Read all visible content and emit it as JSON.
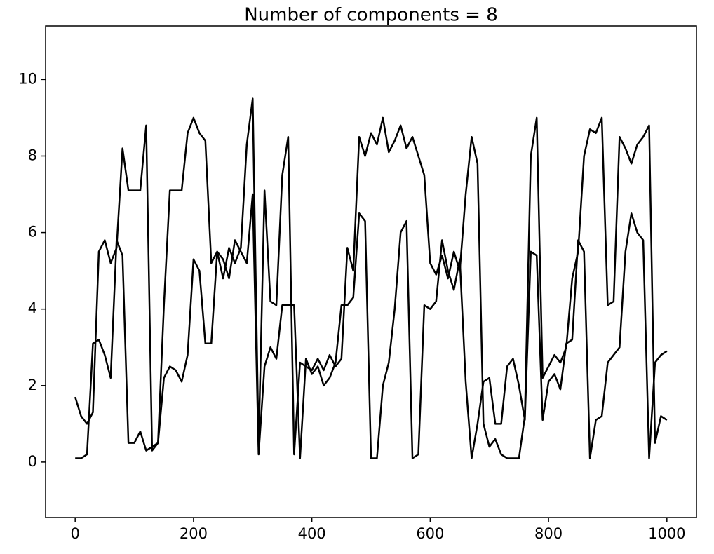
{
  "chart_data": {
    "type": "line",
    "title": "Number of components = 8",
    "x": [
      0,
      10,
      20,
      30,
      40,
      50,
      60,
      70,
      80,
      90,
      100,
      110,
      120,
      130,
      140,
      150,
      160,
      170,
      180,
      190,
      200,
      210,
      220,
      230,
      240,
      250,
      260,
      270,
      280,
      290,
      300,
      310,
      320,
      330,
      340,
      350,
      360,
      370,
      380,
      390,
      400,
      410,
      420,
      430,
      440,
      450,
      460,
      470,
      480,
      490,
      500,
      510,
      520,
      530,
      540,
      550,
      560,
      570,
      580,
      590,
      600,
      610,
      620,
      630,
      640,
      650,
      660,
      670,
      680,
      690,
      700,
      710,
      720,
      730,
      740,
      750,
      760,
      770,
      780,
      790,
      800,
      810,
      820,
      830,
      840,
      850,
      860,
      870,
      880,
      890,
      900,
      910,
      920,
      930,
      940,
      950,
      960,
      970,
      980,
      990,
      1000
    ],
    "series": [
      {
        "color": "#000000",
        "values": [
          1.7,
          1.2,
          1.0,
          1.3,
          5.5,
          5.8,
          5.2,
          5.6,
          8.2,
          7.1,
          7.1,
          7.1,
          8.8,
          0.3,
          0.5,
          4.1,
          7.1,
          7.1,
          7.1,
          8.6,
          9.0,
          8.6,
          8.4,
          5.2,
          5.5,
          4.8,
          5.6,
          5.2,
          5.6,
          8.3,
          9.5,
          0.4,
          7.1,
          4.2,
          4.1,
          7.5,
          8.5,
          0.2,
          2.6,
          2.5,
          2.4,
          2.7,
          2.4,
          2.8,
          2.5,
          2.7,
          5.6,
          5.0,
          8.5,
          8.0,
          8.6,
          8.3,
          9.0,
          8.1,
          8.4,
          8.8,
          8.2,
          8.5,
          8.0,
          7.5,
          5.2,
          4.9,
          5.4,
          4.8,
          5.5,
          5.0,
          7.0,
          8.5,
          7.8,
          1.0,
          0.4,
          0.6,
          0.2,
          0.1,
          0.1,
          0.1,
          1.2,
          8.0,
          9.0,
          2.2,
          2.5,
          2.8,
          2.6,
          3.0,
          4.8,
          5.5,
          8.0,
          8.7,
          8.6,
          9.0,
          4.1,
          4.2,
          8.5,
          8.2,
          7.8,
          8.3,
          8.5,
          8.8,
          0.5,
          1.2,
          1.1
        ]
      },
      {
        "color": "#000000",
        "values": [
          0.1,
          0.1,
          0.2,
          3.1,
          3.2,
          2.8,
          2.2,
          5.8,
          5.4,
          0.5,
          0.5,
          0.8,
          0.3,
          0.4,
          0.5,
          2.2,
          2.5,
          2.4,
          2.1,
          2.8,
          5.3,
          5.0,
          3.1,
          3.1,
          5.5,
          5.3,
          4.8,
          5.8,
          5.5,
          5.2,
          7.0,
          0.2,
          2.5,
          3.0,
          2.7,
          4.1,
          4.1,
          4.1,
          0.1,
          2.7,
          2.3,
          2.5,
          2.0,
          2.2,
          2.6,
          4.1,
          4.1,
          4.3,
          6.5,
          6.3,
          0.1,
          0.1,
          2.0,
          2.6,
          4.0,
          6.0,
          6.3,
          0.1,
          0.2,
          4.1,
          4.0,
          4.2,
          5.8,
          5.0,
          4.5,
          5.3,
          2.1,
          0.1,
          1.0,
          2.1,
          2.2,
          1.0,
          1.0,
          2.5,
          2.7,
          2.0,
          1.1,
          5.5,
          5.4,
          1.1,
          2.1,
          2.3,
          1.9,
          3.1,
          3.2,
          5.8,
          5.5,
          0.1,
          1.1,
          1.2,
          2.6,
          2.8,
          3.0,
          5.5,
          6.5,
          6.0,
          5.8,
          0.1,
          2.6,
          2.8,
          2.9
        ]
      }
    ],
    "xlim": [
      -50,
      1050
    ],
    "xticks": [
      0,
      200,
      400,
      600,
      800,
      1000
    ],
    "ylim": [
      -1.45,
      11.4
    ],
    "yticks": [
      0,
      2,
      4,
      6,
      8,
      10
    ]
  }
}
